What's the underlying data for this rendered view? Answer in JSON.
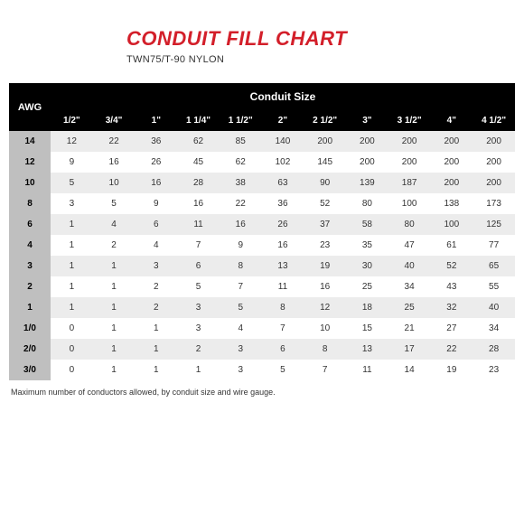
{
  "header": {
    "title": "CONDUIT FILL CHART",
    "title_color": "#d31f2a",
    "subtitle": "TWN75/T-90 NYLON"
  },
  "table": {
    "type": "table",
    "header_bg": "#000000",
    "header_fg": "#ffffff",
    "awg_header": "AWG",
    "span_header": "Conduit Size",
    "size_headers": [
      "1/2\"",
      "3/4\"",
      "1\"",
      "1 1/4\"",
      "1 1/2\"",
      "2\"",
      "2 1/2\"",
      "3\"",
      "3 1/2\"",
      "4\"",
      "4 1/2\""
    ],
    "awg_col_bg": "#bfbfbf",
    "row_alt_bg": "#ececec",
    "row_bg": "#ffffff",
    "cell_fg": "#333333",
    "rows": [
      {
        "awg": "14",
        "vals": [
          "12",
          "22",
          "36",
          "62",
          "85",
          "140",
          "200",
          "200",
          "200",
          "200",
          "200"
        ]
      },
      {
        "awg": "12",
        "vals": [
          "9",
          "16",
          "26",
          "45",
          "62",
          "102",
          "145",
          "200",
          "200",
          "200",
          "200"
        ]
      },
      {
        "awg": "10",
        "vals": [
          "5",
          "10",
          "16",
          "28",
          "38",
          "63",
          "90",
          "139",
          "187",
          "200",
          "200"
        ]
      },
      {
        "awg": "8",
        "vals": [
          "3",
          "5",
          "9",
          "16",
          "22",
          "36",
          "52",
          "80",
          "100",
          "138",
          "173"
        ]
      },
      {
        "awg": "6",
        "vals": [
          "1",
          "4",
          "6",
          "11",
          "16",
          "26",
          "37",
          "58",
          "80",
          "100",
          "125"
        ]
      },
      {
        "awg": "4",
        "vals": [
          "1",
          "2",
          "4",
          "7",
          "9",
          "16",
          "23",
          "35",
          "47",
          "61",
          "77"
        ]
      },
      {
        "awg": "3",
        "vals": [
          "1",
          "1",
          "3",
          "6",
          "8",
          "13",
          "19",
          "30",
          "40",
          "52",
          "65"
        ]
      },
      {
        "awg": "2",
        "vals": [
          "1",
          "1",
          "2",
          "5",
          "7",
          "11",
          "16",
          "25",
          "34",
          "43",
          "55"
        ]
      },
      {
        "awg": "1",
        "vals": [
          "1",
          "1",
          "2",
          "3",
          "5",
          "8",
          "12",
          "18",
          "25",
          "32",
          "40"
        ]
      },
      {
        "awg": "1/0",
        "vals": [
          "0",
          "1",
          "1",
          "3",
          "4",
          "7",
          "10",
          "15",
          "21",
          "27",
          "34"
        ]
      },
      {
        "awg": "2/0",
        "vals": [
          "0",
          "1",
          "1",
          "2",
          "3",
          "6",
          "8",
          "13",
          "17",
          "22",
          "28"
        ]
      },
      {
        "awg": "3/0",
        "vals": [
          "0",
          "1",
          "1",
          "1",
          "3",
          "5",
          "7",
          "11",
          "14",
          "19",
          "23"
        ]
      }
    ]
  },
  "footnote": "Maximum number of conductors allowed, by conduit size and wire gauge."
}
